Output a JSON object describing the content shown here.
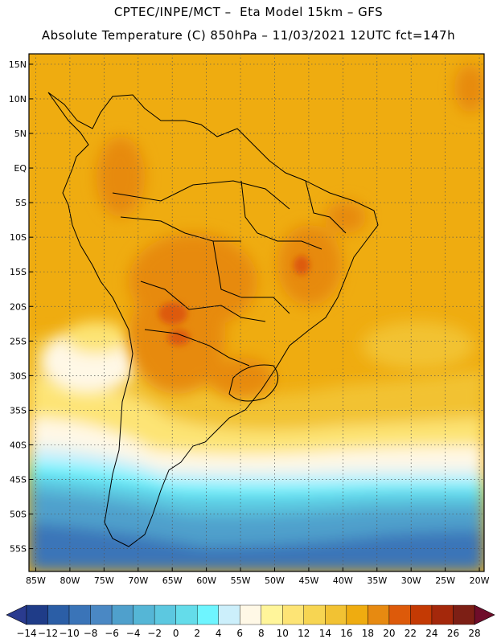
{
  "header": {
    "line1": "CPTEC/INPE/MCT –  Eta Model 15km – GFS",
    "line2": "Absolute Temperature (C) 850hPa – 11/03/2021 12UTC fct=147h"
  },
  "map": {
    "lat_ticks": [
      "15N",
      "10N",
      "5N",
      "EQ",
      "5S",
      "10S",
      "15S",
      "20S",
      "25S",
      "30S",
      "35S",
      "40S",
      "45S",
      "50S",
      "55S"
    ],
    "lon_ticks": [
      "85W",
      "80W",
      "75W",
      "70W",
      "65W",
      "60W",
      "55W",
      "50W",
      "45W",
      "40W",
      "35W",
      "30W",
      "25W",
      "20W"
    ],
    "extent": {
      "lon_min": -86,
      "lon_max": -19.3,
      "lat_min": -58.3,
      "lat_max": 16.5
    }
  },
  "colorbar": {
    "labels": [
      "-14",
      "-12",
      "-10",
      "-8",
      "-6",
      "-4",
      "-2",
      "0",
      "2",
      "4",
      "6",
      "8",
      "10",
      "12",
      "14",
      "16",
      "18",
      "20",
      "22",
      "24",
      "26",
      "28"
    ],
    "colors": [
      "#1f3c88",
      "#2b5ea6",
      "#3a74b8",
      "#4a88c4",
      "#4fa0cc",
      "#55b6d6",
      "#5cc8e0",
      "#64dcea",
      "#6ef5ff",
      "#cceffb",
      "#fff8e6",
      "#fff59a",
      "#fde475",
      "#f7d552",
      "#f2c233",
      "#efac10",
      "#e78a11",
      "#dd5a0a",
      "#c43a04",
      "#a4280b",
      "#7d1f15"
    ],
    "left_arrow": "#2a3b8f",
    "right_arrow": "#6f0d2a"
  }
}
